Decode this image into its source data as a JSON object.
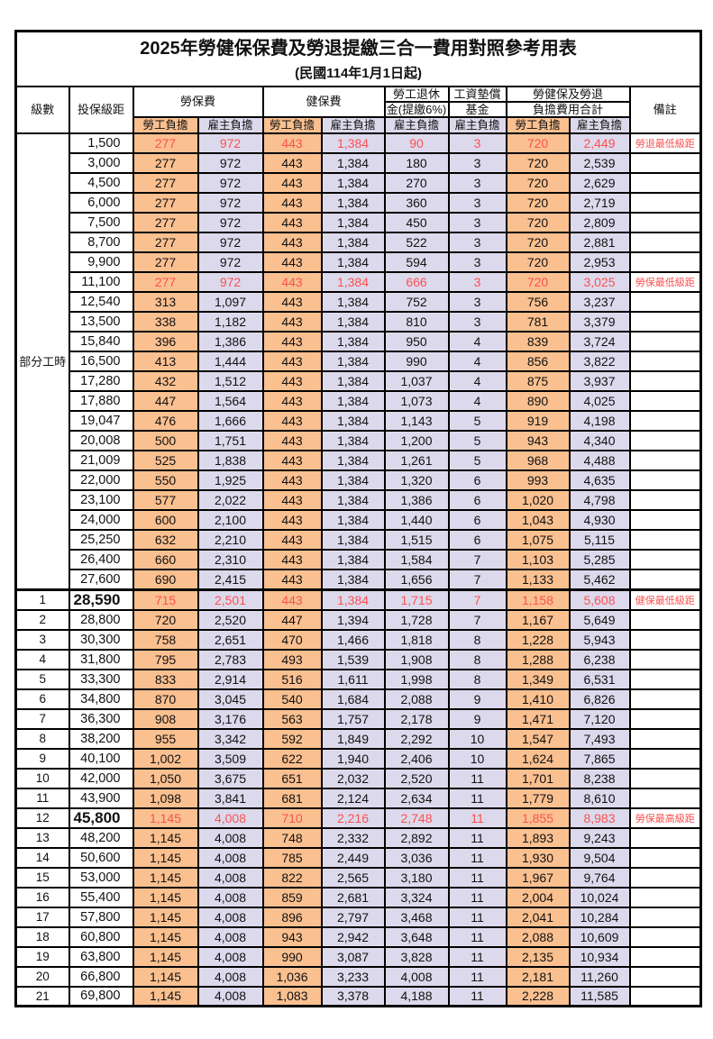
{
  "page": {
    "title": "2025年勞健保保費及勞退提繳三合一費用對照參考用表",
    "subtitle": "(民國114年1月1日起)"
  },
  "colors": {
    "employee_bg": "#FAC090",
    "employer_bg": "#DDD9EC",
    "highlight_red": "#FB5150",
    "border": "#000000"
  },
  "table": {
    "header": {
      "level": "級數",
      "salary": "投保級距",
      "labor": "勞保費",
      "health": "健保費",
      "pension_line1": "勞工退休",
      "pension_line2": "金(提繳6%)",
      "fund_line1": "工資墊償",
      "fund_line2": "基金",
      "total_line1": "勞健保及勞退",
      "total_line2": "負擔費用合計",
      "remark": "備註",
      "employee": "勞工負擔",
      "employer": "雇主負擔"
    },
    "part_time_label": "部分工時",
    "rows": [
      {
        "group": "pt",
        "level": "",
        "salary": "1,500",
        "values": [
          "277",
          "972",
          "443",
          "1,384",
          "90",
          "3",
          "720",
          "2,449"
        ],
        "remark": "勞退最低級距",
        "highlight": true,
        "big": false
      },
      {
        "group": "pt",
        "level": "",
        "salary": "3,000",
        "values": [
          "277",
          "972",
          "443",
          "1,384",
          "180",
          "3",
          "720",
          "2,539"
        ],
        "remark": "",
        "highlight": false,
        "big": false
      },
      {
        "group": "pt",
        "level": "",
        "salary": "4,500",
        "values": [
          "277",
          "972",
          "443",
          "1,384",
          "270",
          "3",
          "720",
          "2,629"
        ],
        "remark": "",
        "highlight": false,
        "big": false
      },
      {
        "group": "pt",
        "level": "",
        "salary": "6,000",
        "values": [
          "277",
          "972",
          "443",
          "1,384",
          "360",
          "3",
          "720",
          "2,719"
        ],
        "remark": "",
        "highlight": false,
        "big": false
      },
      {
        "group": "pt",
        "level": "",
        "salary": "7,500",
        "values": [
          "277",
          "972",
          "443",
          "1,384",
          "450",
          "3",
          "720",
          "2,809"
        ],
        "remark": "",
        "highlight": false,
        "big": false
      },
      {
        "group": "pt",
        "level": "",
        "salary": "8,700",
        "values": [
          "277",
          "972",
          "443",
          "1,384",
          "522",
          "3",
          "720",
          "2,881"
        ],
        "remark": "",
        "highlight": false,
        "big": false
      },
      {
        "group": "pt",
        "level": "",
        "salary": "9,900",
        "values": [
          "277",
          "972",
          "443",
          "1,384",
          "594",
          "3",
          "720",
          "2,953"
        ],
        "remark": "",
        "highlight": false,
        "big": false
      },
      {
        "group": "pt",
        "level": "",
        "salary": "11,100",
        "values": [
          "277",
          "972",
          "443",
          "1,384",
          "666",
          "3",
          "720",
          "3,025"
        ],
        "remark": "勞保最低級距",
        "highlight": true,
        "big": false
      },
      {
        "group": "pt",
        "level": "",
        "salary": "12,540",
        "values": [
          "313",
          "1,097",
          "443",
          "1,384",
          "752",
          "3",
          "756",
          "3,237"
        ],
        "remark": "",
        "highlight": false,
        "big": false
      },
      {
        "group": "pt",
        "level": "",
        "salary": "13,500",
        "values": [
          "338",
          "1,182",
          "443",
          "1,384",
          "810",
          "3",
          "781",
          "3,379"
        ],
        "remark": "",
        "highlight": false,
        "big": false
      },
      {
        "group": "pt",
        "level": "",
        "salary": "15,840",
        "values": [
          "396",
          "1,386",
          "443",
          "1,384",
          "950",
          "4",
          "839",
          "3,724"
        ],
        "remark": "",
        "highlight": false,
        "big": false
      },
      {
        "group": "pt",
        "level": "",
        "salary": "16,500",
        "values": [
          "413",
          "1,444",
          "443",
          "1,384",
          "990",
          "4",
          "856",
          "3,822"
        ],
        "remark": "",
        "highlight": false,
        "big": false
      },
      {
        "group": "pt",
        "level": "",
        "salary": "17,280",
        "values": [
          "432",
          "1,512",
          "443",
          "1,384",
          "1,037",
          "4",
          "875",
          "3,937"
        ],
        "remark": "",
        "highlight": false,
        "big": false
      },
      {
        "group": "pt",
        "level": "",
        "salary": "17,880",
        "values": [
          "447",
          "1,564",
          "443",
          "1,384",
          "1,073",
          "4",
          "890",
          "4,025"
        ],
        "remark": "",
        "highlight": false,
        "big": false
      },
      {
        "group": "pt",
        "level": "",
        "salary": "19,047",
        "values": [
          "476",
          "1,666",
          "443",
          "1,384",
          "1,143",
          "5",
          "919",
          "4,198"
        ],
        "remark": "",
        "highlight": false,
        "big": false
      },
      {
        "group": "pt",
        "level": "",
        "salary": "20,008",
        "values": [
          "500",
          "1,751",
          "443",
          "1,384",
          "1,200",
          "5",
          "943",
          "4,340"
        ],
        "remark": "",
        "highlight": false,
        "big": false
      },
      {
        "group": "pt",
        "level": "",
        "salary": "21,009",
        "values": [
          "525",
          "1,838",
          "443",
          "1,384",
          "1,261",
          "5",
          "968",
          "4,488"
        ],
        "remark": "",
        "highlight": false,
        "big": false
      },
      {
        "group": "pt",
        "level": "",
        "salary": "22,000",
        "values": [
          "550",
          "1,925",
          "443",
          "1,384",
          "1,320",
          "6",
          "993",
          "4,635"
        ],
        "remark": "",
        "highlight": false,
        "big": false
      },
      {
        "group": "pt",
        "level": "",
        "salary": "23,100",
        "values": [
          "577",
          "2,022",
          "443",
          "1,384",
          "1,386",
          "6",
          "1,020",
          "4,798"
        ],
        "remark": "",
        "highlight": false,
        "big": false
      },
      {
        "group": "pt",
        "level": "",
        "salary": "24,000",
        "values": [
          "600",
          "2,100",
          "443",
          "1,384",
          "1,440",
          "6",
          "1,043",
          "4,930"
        ],
        "remark": "",
        "highlight": false,
        "big": false
      },
      {
        "group": "pt",
        "level": "",
        "salary": "25,250",
        "values": [
          "632",
          "2,210",
          "443",
          "1,384",
          "1,515",
          "6",
          "1,075",
          "5,115"
        ],
        "remark": "",
        "highlight": false,
        "big": false
      },
      {
        "group": "pt",
        "level": "",
        "salary": "26,400",
        "values": [
          "660",
          "2,310",
          "443",
          "1,384",
          "1,584",
          "7",
          "1,103",
          "5,285"
        ],
        "remark": "",
        "highlight": false,
        "big": false
      },
      {
        "group": "pt",
        "level": "",
        "salary": "27,600",
        "values": [
          "690",
          "2,415",
          "443",
          "1,384",
          "1,656",
          "7",
          "1,133",
          "5,462"
        ],
        "remark": "",
        "highlight": false,
        "big": false
      },
      {
        "group": "lv",
        "level": "1",
        "salary": "28,590",
        "values": [
          "715",
          "2,501",
          "443",
          "1,384",
          "1,715",
          "7",
          "1,158",
          "5,608"
        ],
        "remark": "健保最低級距",
        "highlight": true,
        "big": true,
        "sep": true
      },
      {
        "group": "lv",
        "level": "2",
        "salary": "28,800",
        "values": [
          "720",
          "2,520",
          "447",
          "1,394",
          "1,728",
          "7",
          "1,167",
          "5,649"
        ],
        "remark": "",
        "highlight": false,
        "big": false
      },
      {
        "group": "lv",
        "level": "3",
        "salary": "30,300",
        "values": [
          "758",
          "2,651",
          "470",
          "1,466",
          "1,818",
          "8",
          "1,228",
          "5,943"
        ],
        "remark": "",
        "highlight": false,
        "big": false
      },
      {
        "group": "lv",
        "level": "4",
        "salary": "31,800",
        "values": [
          "795",
          "2,783",
          "493",
          "1,539",
          "1,908",
          "8",
          "1,288",
          "6,238"
        ],
        "remark": "",
        "highlight": false,
        "big": false
      },
      {
        "group": "lv",
        "level": "5",
        "salary": "33,300",
        "values": [
          "833",
          "2,914",
          "516",
          "1,611",
          "1,998",
          "8",
          "1,349",
          "6,531"
        ],
        "remark": "",
        "highlight": false,
        "big": false
      },
      {
        "group": "lv",
        "level": "6",
        "salary": "34,800",
        "values": [
          "870",
          "3,045",
          "540",
          "1,684",
          "2,088",
          "9",
          "1,410",
          "6,826"
        ],
        "remark": "",
        "highlight": false,
        "big": false
      },
      {
        "group": "lv",
        "level": "7",
        "salary": "36,300",
        "values": [
          "908",
          "3,176",
          "563",
          "1,757",
          "2,178",
          "9",
          "1,471",
          "7,120"
        ],
        "remark": "",
        "highlight": false,
        "big": false
      },
      {
        "group": "lv",
        "level": "8",
        "salary": "38,200",
        "values": [
          "955",
          "3,342",
          "592",
          "1,849",
          "2,292",
          "10",
          "1,547",
          "7,493"
        ],
        "remark": "",
        "highlight": false,
        "big": false
      },
      {
        "group": "lv",
        "level": "9",
        "salary": "40,100",
        "values": [
          "1,002",
          "3,509",
          "622",
          "1,940",
          "2,406",
          "10",
          "1,624",
          "7,865"
        ],
        "remark": "",
        "highlight": false,
        "big": false
      },
      {
        "group": "lv",
        "level": "10",
        "salary": "42,000",
        "values": [
          "1,050",
          "3,675",
          "651",
          "2,032",
          "2,520",
          "11",
          "1,701",
          "8,238"
        ],
        "remark": "",
        "highlight": false,
        "big": false
      },
      {
        "group": "lv",
        "level": "11",
        "salary": "43,900",
        "values": [
          "1,098",
          "3,841",
          "681",
          "2,124",
          "2,634",
          "11",
          "1,779",
          "8,610"
        ],
        "remark": "",
        "highlight": false,
        "big": false
      },
      {
        "group": "lv",
        "level": "12",
        "salary": "45,800",
        "values": [
          "1,145",
          "4,008",
          "710",
          "2,216",
          "2,748",
          "11",
          "1,855",
          "8,983"
        ],
        "remark": "勞保最高級距",
        "highlight": true,
        "big": true
      },
      {
        "group": "lv",
        "level": "13",
        "salary": "48,200",
        "values": [
          "1,145",
          "4,008",
          "748",
          "2,332",
          "2,892",
          "11",
          "1,893",
          "9,243"
        ],
        "remark": "",
        "highlight": false,
        "big": false
      },
      {
        "group": "lv",
        "level": "14",
        "salary": "50,600",
        "values": [
          "1,145",
          "4,008",
          "785",
          "2,449",
          "3,036",
          "11",
          "1,930",
          "9,504"
        ],
        "remark": "",
        "highlight": false,
        "big": false
      },
      {
        "group": "lv",
        "level": "15",
        "salary": "53,000",
        "values": [
          "1,145",
          "4,008",
          "822",
          "2,565",
          "3,180",
          "11",
          "1,967",
          "9,764"
        ],
        "remark": "",
        "highlight": false,
        "big": false
      },
      {
        "group": "lv",
        "level": "16",
        "salary": "55,400",
        "values": [
          "1,145",
          "4,008",
          "859",
          "2,681",
          "3,324",
          "11",
          "2,004",
          "10,024"
        ],
        "remark": "",
        "highlight": false,
        "big": false
      },
      {
        "group": "lv",
        "level": "17",
        "salary": "57,800",
        "values": [
          "1,145",
          "4,008",
          "896",
          "2,797",
          "3,468",
          "11",
          "2,041",
          "10,284"
        ],
        "remark": "",
        "highlight": false,
        "big": false
      },
      {
        "group": "lv",
        "level": "18",
        "salary": "60,800",
        "values": [
          "1,145",
          "4,008",
          "943",
          "2,942",
          "3,648",
          "11",
          "2,088",
          "10,609"
        ],
        "remark": "",
        "highlight": false,
        "big": false
      },
      {
        "group": "lv",
        "level": "19",
        "salary": "63,800",
        "values": [
          "1,145",
          "4,008",
          "990",
          "3,087",
          "3,828",
          "11",
          "2,135",
          "10,934"
        ],
        "remark": "",
        "highlight": false,
        "big": false
      },
      {
        "group": "lv",
        "level": "20",
        "salary": "66,800",
        "values": [
          "1,145",
          "4,008",
          "1,036",
          "3,233",
          "4,008",
          "11",
          "2,181",
          "11,260"
        ],
        "remark": "",
        "highlight": false,
        "big": false
      },
      {
        "group": "lv",
        "level": "21",
        "salary": "69,800",
        "values": [
          "1,145",
          "4,008",
          "1,083",
          "3,378",
          "4,188",
          "11",
          "2,228",
          "11,585"
        ],
        "remark": "",
        "highlight": false,
        "big": false
      }
    ]
  }
}
